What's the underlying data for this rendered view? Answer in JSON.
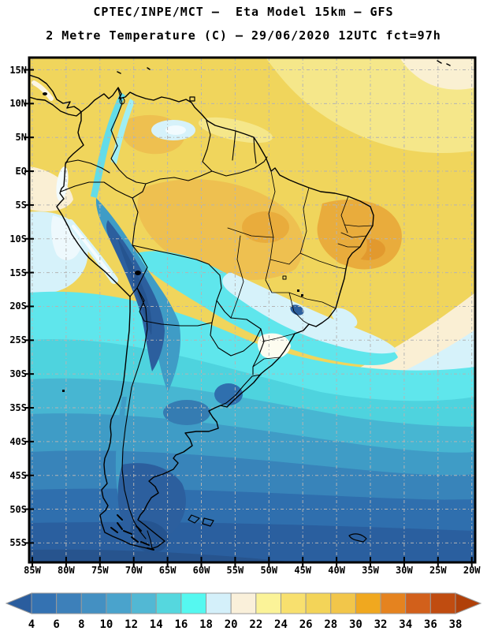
{
  "header": {
    "title": "CPTEC/INPE/MCT –  Eta Model 15km – GFS",
    "subtitle": "2 Metre Temperature (C) – 29/06/2020 12UTC fct=97h"
  },
  "map_axes": {
    "lat_labels": [
      "15N",
      "10N",
      "5N",
      "EQ",
      "5S",
      "10S",
      "15S",
      "20S",
      "25S",
      "30S",
      "35S",
      "40S",
      "45S",
      "50S",
      "55S"
    ],
    "lon_labels": [
      "85W",
      "80W",
      "75W",
      "70W",
      "65W",
      "60W",
      "55W",
      "50W",
      "45W",
      "40W",
      "35W",
      "30W",
      "25W",
      "20W"
    ]
  },
  "colorbar": {
    "unit": "C",
    "tick_labels": [
      "4",
      "6",
      "8",
      "10",
      "12",
      "14",
      "16",
      "18",
      "20",
      "22",
      "24",
      "26",
      "28",
      "30",
      "32",
      "34",
      "36",
      "38"
    ],
    "cell_colors": [
      "#3472b2",
      "#3d80ba",
      "#4490c2",
      "#4aa3cc",
      "#52b8d4",
      "#55d7de",
      "#55f8f0",
      "#d4f0fa",
      "#faf0da",
      "#fbf398",
      "#f8e06e",
      "#f3d458",
      "#f2c64a",
      "#f0a81f",
      "#e5831f",
      "#d2601b",
      "#c04c10"
    ],
    "left_arrow_color": "#2a5d9e",
    "right_arrow_color": "#b04009",
    "cell_border_color": "#9a9a9a"
  },
  "map_style": {
    "grid_color": "#b4b4b4",
    "frame_color": "#000000",
    "border_color": "#000000"
  }
}
